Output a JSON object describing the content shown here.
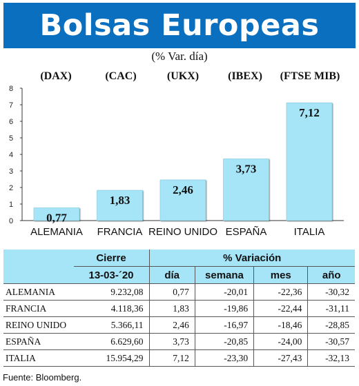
{
  "title": "Bolsas Europeas",
  "subtitle": "(% Var. día)",
  "indices": [
    "(DAX)",
    "(CAC)",
    "(UKX)",
    "(IBEX)",
    "(FTSE MIB)"
  ],
  "chart_data": {
    "type": "bar",
    "categories": [
      "ALEMANIA",
      "FRANCIA",
      "REINO UNIDO",
      "ESPAÑA",
      "ITALIA"
    ],
    "values": [
      0.77,
      1.83,
      2.46,
      3.73,
      7.12
    ],
    "value_labels": [
      "0,77",
      "1,83",
      "2,46",
      "3,73",
      "7,12"
    ],
    "ylim": [
      0,
      8
    ],
    "yticks": [
      "0",
      "1",
      "2",
      "3",
      "4",
      "5",
      "6",
      "7",
      "8"
    ],
    "bar_color": "#a6e4f7",
    "grid": false
  },
  "table": {
    "header_cierre": "Cierre",
    "header_variacion": "% Variación",
    "header_date": "13-03-´20",
    "header_dia": "día",
    "header_semana": "semana",
    "header_mes": "mes",
    "header_ano": "año",
    "rows": [
      {
        "pais": "ALEMANIA",
        "cierre": "9.232,08",
        "dia": "0,77",
        "semana": "-20,01",
        "mes": "-22,36",
        "ano": "-30,32"
      },
      {
        "pais": "FRANCIA",
        "cierre": "4.118,36",
        "dia": "1,83",
        "semana": "-19,86",
        "mes": "-22,44",
        "ano": "-31,11"
      },
      {
        "pais": "REINO UNIDO",
        "cierre": "5.366,11",
        "dia": "2,46",
        "semana": "-16,97",
        "mes": "-18,46",
        "ano": "-28,85"
      },
      {
        "pais": "ESPAÑA",
        "cierre": "6.629,60",
        "dia": "3,73",
        "semana": "-20,85",
        "mes": "-24,00",
        "ano": "-30,57"
      },
      {
        "pais": "ITALIA",
        "cierre": "15.954,29",
        "dia": "7,12",
        "semana": "-23,30",
        "mes": "-27,43",
        "ano": "-32,13"
      }
    ]
  },
  "source": "Fuente: Bloomberg."
}
